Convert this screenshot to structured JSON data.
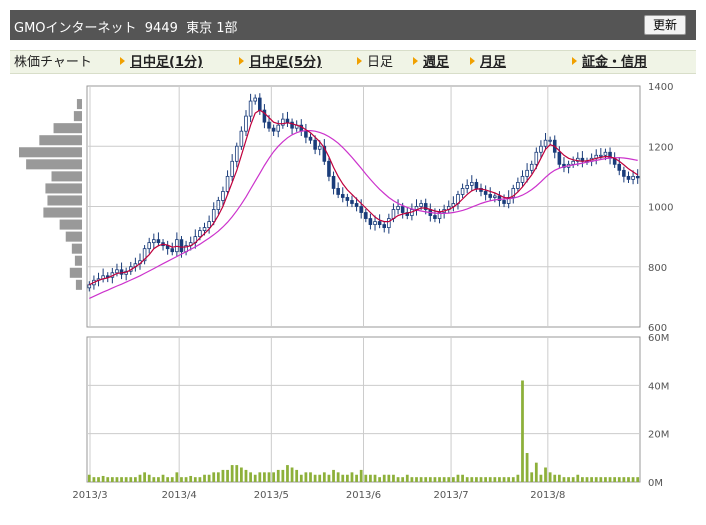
{
  "header": {
    "title": "GMOインターネット  9449  東京 1部",
    "refresh_label": "更新"
  },
  "nav": {
    "items": [
      {
        "label": "株価チャート",
        "link": false,
        "arrow": false
      },
      {
        "label": "日中足(1分)",
        "link": true,
        "arrow": true
      },
      {
        "label": "日中足(5分)",
        "link": true,
        "arrow": true
      },
      {
        "label": "日足",
        "link": false,
        "arrow": true
      },
      {
        "label": "週足",
        "link": true,
        "arrow": true
      },
      {
        "label": "月足",
        "link": true,
        "arrow": true
      },
      {
        "label": "証金・信用",
        "link": true,
        "arrow": true
      }
    ]
  },
  "colors": {
    "up_candle": "#ffffff",
    "down_candle": "#1a3c7a",
    "candle_outline": "#1a3c7a",
    "ma_short": "#c0003c",
    "ma_long": "#cc33cc",
    "volume_bar": "#8db03a",
    "price_profile": "#999999",
    "grid": "#cccccc"
  },
  "chart_data": [
    {
      "type": "candlestick",
      "title": "",
      "xlabel": "",
      "ylabel": "",
      "ylim": [
        600,
        1400
      ],
      "y_ticks": [
        600,
        800,
        1000,
        1200,
        1400
      ],
      "x_ticks": [
        "2013/3",
        "2013/4",
        "2013/5",
        "2013/6",
        "2013/7",
        "2013/8"
      ],
      "x_tick_index": [
        0,
        20,
        40,
        60,
        79,
        100
      ],
      "grid": true,
      "close": [
        740,
        755,
        760,
        770,
        765,
        780,
        790,
        775,
        785,
        800,
        810,
        820,
        860,
        880,
        890,
        880,
        870,
        860,
        850,
        890,
        850,
        870,
        880,
        900,
        920,
        930,
        950,
        990,
        1020,
        1050,
        1100,
        1150,
        1200,
        1250,
        1300,
        1350,
        1360,
        1320,
        1280,
        1260,
        1250,
        1270,
        1290,
        1280,
        1260,
        1270,
        1250,
        1230,
        1220,
        1190,
        1200,
        1150,
        1100,
        1060,
        1040,
        1030,
        1020,
        1010,
        1000,
        980,
        960,
        940,
        950,
        940,
        930,
        960,
        990,
        1000,
        980,
        970,
        990,
        1000,
        1010,
        990,
        970,
        960,
        980,
        990,
        1000,
        1010,
        1040,
        1060,
        1070,
        1080,
        1060,
        1050,
        1040,
        1030,
        1035,
        1020,
        1010,
        1030,
        1060,
        1080,
        1100,
        1120,
        1140,
        1180,
        1200,
        1220,
        1220,
        1180,
        1140,
        1130,
        1140,
        1150,
        1160,
        1150,
        1150,
        1160,
        1170,
        1170,
        1180,
        1160,
        1140,
        1120,
        1100,
        1090,
        1100,
        1095
      ],
      "ma_short": [
        740,
        748,
        755,
        760,
        763,
        770,
        778,
        780,
        782,
        790,
        800,
        810,
        825,
        840,
        860,
        870,
        875,
        872,
        865,
        868,
        865,
        866,
        870,
        880,
        895,
        910,
        925,
        945,
        970,
        1000,
        1040,
        1080,
        1120,
        1170,
        1220,
        1270,
        1310,
        1320,
        1310,
        1295,
        1280,
        1275,
        1275,
        1278,
        1275,
        1270,
        1265,
        1255,
        1245,
        1230,
        1215,
        1195,
        1165,
        1130,
        1100,
        1075,
        1055,
        1040,
        1025,
        1010,
        995,
        980,
        965,
        955,
        950,
        950,
        960,
        970,
        975,
        978,
        982,
        988,
        995,
        995,
        990,
        985,
        982,
        985,
        990,
        998,
        1010,
        1025,
        1040,
        1052,
        1058,
        1058,
        1055,
        1050,
        1045,
        1038,
        1030,
        1028,
        1035,
        1048,
        1065,
        1085,
        1105,
        1130,
        1160,
        1190,
        1205,
        1200,
        1185,
        1170,
        1160,
        1155,
        1152,
        1150,
        1152,
        1155,
        1160,
        1163,
        1166,
        1165,
        1160,
        1150,
        1138,
        1125,
        1115,
        1105
      ],
      "ma_long": [
        695,
        702,
        709,
        716,
        722,
        729,
        736,
        742,
        749,
        756,
        763,
        770,
        778,
        786,
        794,
        802,
        810,
        818,
        826,
        834,
        842,
        850,
        858,
        866,
        875,
        885,
        895,
        906,
        918,
        932,
        948,
        966,
        986,
        1008,
        1032,
        1058,
        1084,
        1110,
        1136,
        1160,
        1182,
        1200,
        1215,
        1228,
        1238,
        1245,
        1250,
        1252,
        1252,
        1250,
        1246,
        1240,
        1232,
        1222,
        1210,
        1196,
        1180,
        1163,
        1145,
        1127,
        1108,
        1090,
        1073,
        1057,
        1043,
        1030,
        1019,
        1010,
        1003,
        997,
        992,
        988,
        985,
        982,
        980,
        978,
        977,
        977,
        978,
        980,
        983,
        987,
        992,
        998,
        1004,
        1010,
        1015,
        1019,
        1022,
        1024,
        1025,
        1026,
        1028,
        1032,
        1038,
        1046,
        1056,
        1068,
        1082,
        1097,
        1110,
        1120,
        1127,
        1132,
        1135,
        1138,
        1141,
        1144,
        1147,
        1150,
        1153,
        1156,
        1159,
        1161,
        1162,
        1162,
        1161,
        1159,
        1156,
        1153
      ],
      "price_profile": [
        {
          "price": 1340,
          "volume": 5
        },
        {
          "price": 1300,
          "volume": 8
        },
        {
          "price": 1260,
          "volume": 28
        },
        {
          "price": 1220,
          "volume": 42
        },
        {
          "price": 1180,
          "volume": 62
        },
        {
          "price": 1140,
          "volume": 55
        },
        {
          "price": 1100,
          "volume": 30
        },
        {
          "price": 1060,
          "volume": 36
        },
        {
          "price": 1020,
          "volume": 34
        },
        {
          "price": 980,
          "volume": 38
        },
        {
          "price": 940,
          "volume": 22
        },
        {
          "price": 900,
          "volume": 16
        },
        {
          "price": 860,
          "volume": 10
        },
        {
          "price": 820,
          "volume": 7
        },
        {
          "price": 780,
          "volume": 12
        },
        {
          "price": 740,
          "volume": 6
        }
      ]
    },
    {
      "type": "bar",
      "title": "",
      "xlabel": "",
      "ylabel": "",
      "ylim": [
        0,
        60
      ],
      "y_ticks": [
        "0M",
        "20M",
        "40M",
        "60M"
      ],
      "y_tick_values": [
        0,
        20,
        40,
        60
      ],
      "x_ticks": [
        "2013/3",
        "2013/4",
        "2013/5",
        "2013/6",
        "2013/7",
        "2013/8"
      ],
      "grid": true,
      "volume_millions": [
        3,
        2,
        2,
        2.5,
        2,
        2,
        2,
        2,
        2,
        2,
        2,
        3,
        4,
        3,
        2,
        2,
        3,
        2,
        2,
        4,
        2,
        2,
        2.5,
        2,
        2,
        3,
        3,
        4,
        4,
        5,
        5,
        7,
        7,
        6,
        5,
        4,
        3,
        4,
        4,
        4,
        4,
        5,
        5,
        7,
        6,
        5,
        3,
        4,
        4,
        3,
        3,
        4,
        3,
        5,
        4,
        3,
        3,
        4,
        3,
        5,
        3,
        3,
        3,
        2,
        3,
        3,
        3,
        2,
        2,
        3,
        2,
        2,
        2,
        2,
        2,
        2,
        2,
        2,
        2,
        2,
        3,
        3,
        2,
        2,
        2,
        2,
        2,
        2,
        2,
        2,
        2,
        2,
        2,
        3,
        42,
        12,
        4,
        8,
        3,
        6,
        4,
        3,
        3,
        2,
        2,
        2,
        3,
        2,
        2,
        2,
        2,
        2,
        2,
        2,
        2,
        2,
        2,
        2,
        2,
        2
      ]
    }
  ]
}
